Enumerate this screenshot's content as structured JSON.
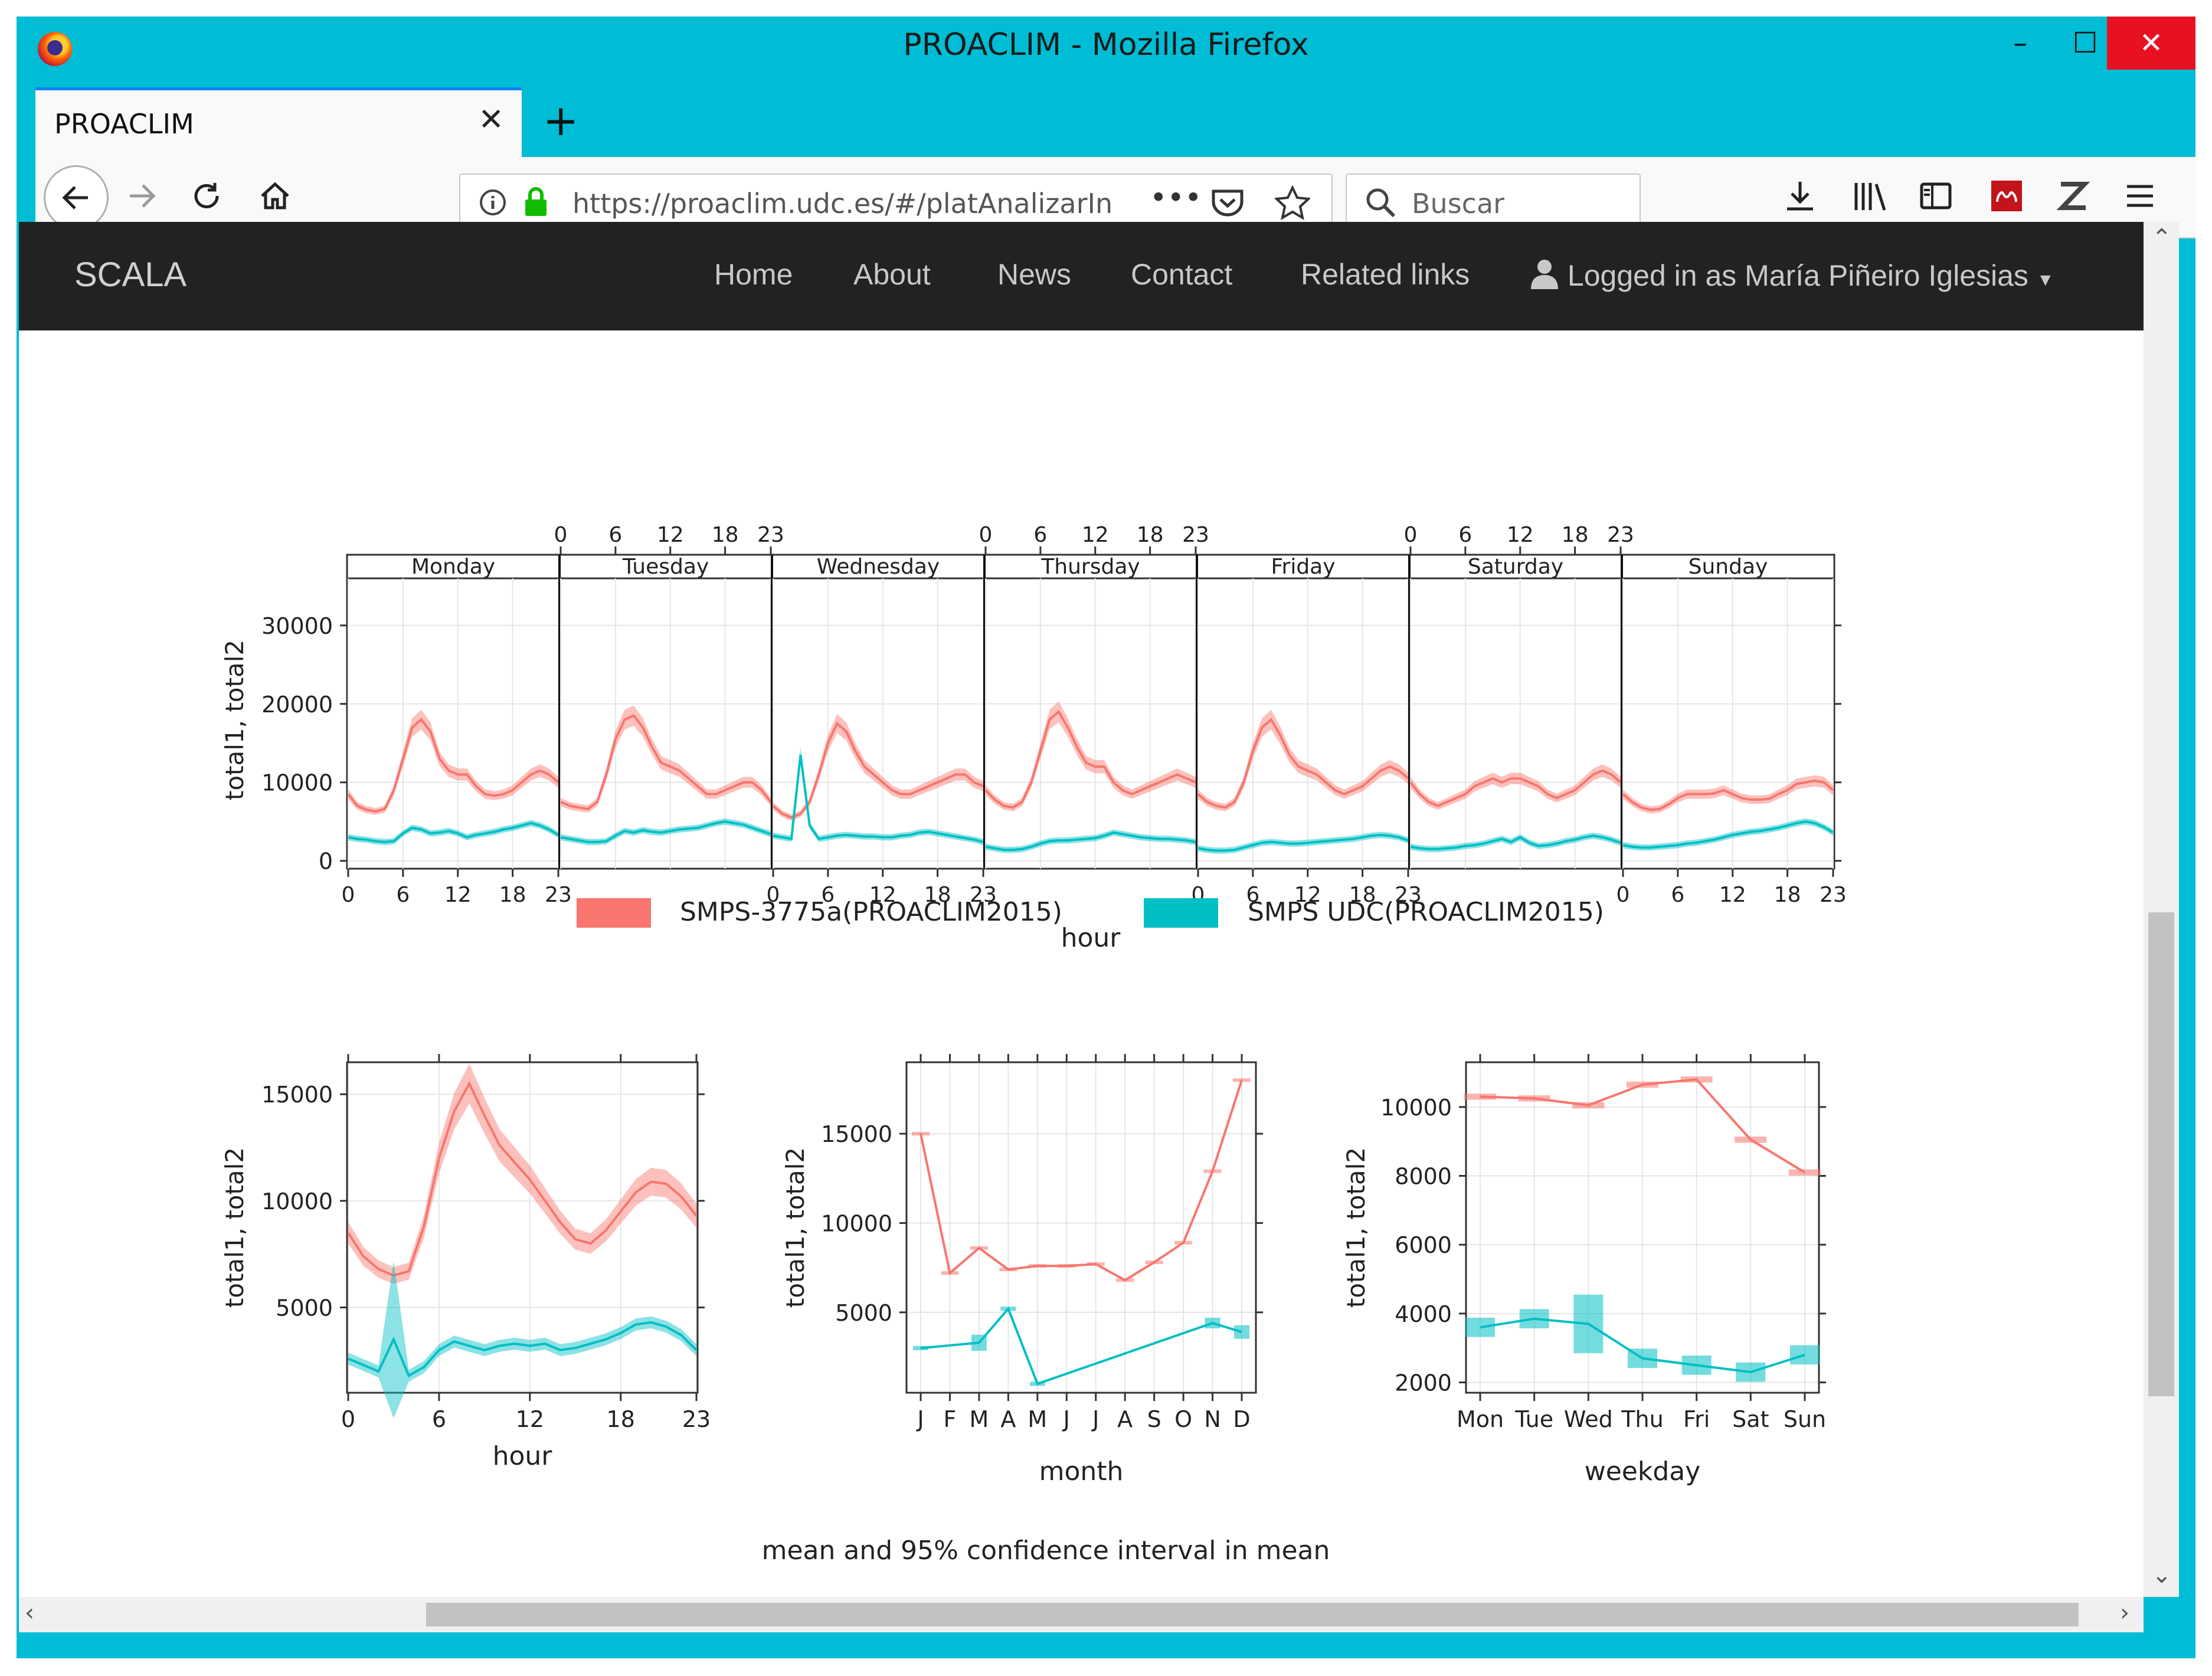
{
  "window": {
    "title": "PROACLIM - Mozilla Firefox"
  },
  "tab": {
    "title": "PROACLIM"
  },
  "urlbar": {
    "url": "https://proaclim.udc.es/#/platAnalizarIn",
    "more": "•••"
  },
  "searchbar": {
    "placeholder": "Buscar"
  },
  "app": {
    "brand": "SCALA",
    "menu": [
      "Home",
      "About",
      "News",
      "Contact",
      "Related links"
    ],
    "user": "Logged in as María Piñeiro Iglesias"
  },
  "colors": {
    "series1": "#f8766d",
    "series2": "#00bfc4",
    "navbar": "#222222",
    "window": "#00bcd4"
  },
  "chart_data": [
    {
      "type": "line",
      "title": "",
      "xlabel": "hour",
      "ylabel": "total1, total2",
      "ylim": [
        -1000,
        36000
      ],
      "yticks": [
        0,
        10000,
        20000,
        30000
      ],
      "panels": [
        "Monday",
        "Tuesday",
        "Wednesday",
        "Thursday",
        "Friday",
        "Saturday",
        "Sunday"
      ],
      "xticks": [
        0,
        6,
        12,
        18,
        23
      ],
      "series": [
        {
          "name": "SMPS-3775a(PROACLIM2015)",
          "color": "#f8766d",
          "values": [
            [
              8500,
              7000,
              6500,
              6300,
              6600,
              9000,
              13000,
              17000,
              18000,
              16500,
              13000,
              11500,
              11000,
              11000,
              9500,
              8500,
              8300,
              8500,
              9000,
              10000,
              11000,
              11500,
              11000,
              10000
            ],
            [
              7500,
              7000,
              6800,
              6600,
              7500,
              11000,
              15500,
              18000,
              18500,
              17000,
              14500,
              12500,
              12000,
              11500,
              10500,
              9500,
              8500,
              8500,
              9000,
              9500,
              10000,
              10000,
              9000,
              7500
            ],
            [
              7000,
              6000,
              5500,
              6000,
              7500,
              11000,
              15000,
              17500,
              16500,
              14000,
              12000,
              11000,
              10000,
              9000,
              8500,
              8500,
              9000,
              9500,
              10000,
              10500,
              11000,
              11000,
              10000,
              9500
            ],
            [
              9000,
              7800,
              7000,
              6800,
              7500,
              10000,
              14000,
              18000,
              19000,
              17000,
              14500,
              12500,
              12000,
              12000,
              10000,
              9000,
              8500,
              9000,
              9500,
              10000,
              10500,
              11000,
              10500,
              10000
            ],
            [
              8500,
              7500,
              7000,
              6800,
              7500,
              10000,
              14000,
              17000,
              18000,
              16000,
              13500,
              12000,
              11500,
              11000,
              10000,
              9000,
              8500,
              9000,
              9500,
              10500,
              11500,
              12000,
              11500,
              10500
            ],
            [
              10000,
              8500,
              7500,
              7000,
              7500,
              8000,
              8500,
              9500,
              10000,
              10500,
              10000,
              10500,
              10500,
              10000,
              9500,
              8500,
              8000,
              8500,
              9000,
              10000,
              11000,
              11500,
              11000,
              10000
            ],
            [
              8500,
              7500,
              6800,
              6500,
              6600,
              7200,
              8000,
              8500,
              8500,
              8500,
              8600,
              9000,
              8500,
              8000,
              7800,
              7800,
              7900,
              8500,
              9000,
              9800,
              10000,
              10200,
              10000,
              9000
            ]
          ]
        },
        {
          "name": "SMPS UDC(PROACLIM2015)",
          "color": "#00bfc4",
          "values": [
            [
              3000,
              2800,
              2700,
              2500,
              2400,
              2500,
              3500,
              4200,
              4000,
              3500,
              3600,
              3800,
              3500,
              3000,
              3300,
              3500,
              3700,
              4000,
              4200,
              4500,
              4800,
              4500,
              4000,
              3300
            ],
            [
              3000,
              2800,
              2600,
              2400,
              2400,
              2500,
              3200,
              3800,
              3600,
              3900,
              3700,
              3600,
              3800,
              4000,
              4100,
              4200,
              4500,
              4800,
              5000,
              4800,
              4600,
              4200,
              3800,
              3400
            ],
            [
              3200,
              3000,
              2800,
              13500,
              4500,
              2800,
              3000,
              3200,
              3300,
              3200,
              3100,
              3100,
              3000,
              3000,
              3200,
              3300,
              3600,
              3700,
              3500,
              3300,
              3100,
              2900,
              2700,
              2400
            ],
            [
              1800,
              1600,
              1400,
              1400,
              1500,
              1800,
              2200,
              2500,
              2600,
              2600,
              2700,
              2800,
              2900,
              3200,
              3600,
              3400,
              3200,
              3000,
              2900,
              2800,
              2800,
              2700,
              2600,
              2400
            ],
            [
              1600,
              1400,
              1300,
              1300,
              1400,
              1700,
              2000,
              2300,
              2400,
              2300,
              2200,
              2200,
              2300,
              2400,
              2500,
              2600,
              2700,
              2800,
              3000,
              3200,
              3300,
              3200,
              3000,
              2600
            ],
            [
              1800,
              1600,
              1500,
              1500,
              1600,
              1700,
              1900,
              2000,
              2200,
              2500,
              2800,
              2400,
              3000,
              2300,
              1900,
              2000,
              2200,
              2500,
              2700,
              3000,
              3200,
              3000,
              2700,
              2300
            ],
            [
              2000,
              1800,
              1700,
              1700,
              1800,
              1900,
              2000,
              2200,
              2300,
              2500,
              2700,
              3000,
              3300,
              3500,
              3700,
              3800,
              4000,
              4200,
              4500,
              4800,
              5000,
              4800,
              4300,
              3600
            ]
          ]
        }
      ]
    },
    {
      "type": "line",
      "xlabel": "hour",
      "ylabel": "total1, total2",
      "ylim": [
        1000,
        16500
      ],
      "yticks": [
        5000,
        10000,
        15000
      ],
      "x": [
        0,
        1,
        2,
        3,
        4,
        5,
        6,
        7,
        8,
        9,
        10,
        11,
        12,
        13,
        14,
        15,
        16,
        17,
        18,
        19,
        20,
        21,
        22,
        23
      ],
      "xticks": [
        0,
        6,
        12,
        18,
        23
      ],
      "series": [
        {
          "name": "SMPS-3775a(PROACLIM2015)",
          "color": "#f8766d",
          "values": [
            8500,
            7400,
            6800,
            6500,
            6700,
            8800,
            12000,
            14200,
            15500,
            14000,
            12600,
            11800,
            11000,
            10000,
            9000,
            8200,
            8000,
            8600,
            9500,
            10400,
            10900,
            10800,
            10200,
            9300
          ]
        },
        {
          "name": "SMPS UDC(PROACLIM2015)",
          "color": "#00bfc4",
          "values": [
            2600,
            2300,
            2000,
            3500,
            1800,
            2200,
            3000,
            3400,
            3200,
            3000,
            3200,
            3300,
            3200,
            3300,
            3000,
            3100,
            3300,
            3500,
            3800,
            4200,
            4300,
            4100,
            3700,
            3000
          ]
        }
      ]
    },
    {
      "type": "line",
      "xlabel": "month",
      "ylabel": "total1, total2",
      "ylim": [
        500,
        19000
      ],
      "yticks": [
        5000,
        10000,
        15000
      ],
      "categories": [
        "J",
        "F",
        "M",
        "A",
        "M",
        "J",
        "J",
        "A",
        "S",
        "O",
        "N",
        "D"
      ],
      "series": [
        {
          "name": "SMPS-3775a(PROACLIM2015)",
          "color": "#f8766d",
          "values": [
            15000,
            7200,
            8600,
            7400,
            7600,
            7600,
            7700,
            6800,
            7800,
            8900,
            12900,
            18000
          ]
        },
        {
          "name": "SMPS UDC(PROACLIM2015)",
          "color": "#00bfc4",
          "values": [
            3000,
            null,
            3300,
            5200,
            1000,
            null,
            null,
            null,
            null,
            null,
            4400,
            3900
          ]
        }
      ]
    },
    {
      "type": "line",
      "xlabel": "weekday",
      "ylabel": "total1, total2",
      "ylim": [
        1700,
        11300
      ],
      "yticks": [
        2000,
        4000,
        6000,
        8000,
        10000
      ],
      "categories": [
        "Mon",
        "Tue",
        "Wed",
        "Thu",
        "Fri",
        "Sat",
        "Sun"
      ],
      "series": [
        {
          "name": "SMPS-3775a(PROACLIM2015)",
          "color": "#f8766d",
          "values": [
            10300,
            10250,
            10050,
            10650,
            10800,
            9050,
            8100
          ]
        },
        {
          "name": "SMPS UDC(PROACLIM2015)",
          "color": "#00bfc4",
          "values": [
            3600,
            3850,
            3700,
            2700,
            2500,
            2300,
            2800
          ]
        }
      ]
    }
  ],
  "caption": "mean and 95% confidence interval in mean",
  "legend": [
    "SMPS-3775a(PROACLIM2015)",
    "SMPS UDC(PROACLIM2015)"
  ]
}
